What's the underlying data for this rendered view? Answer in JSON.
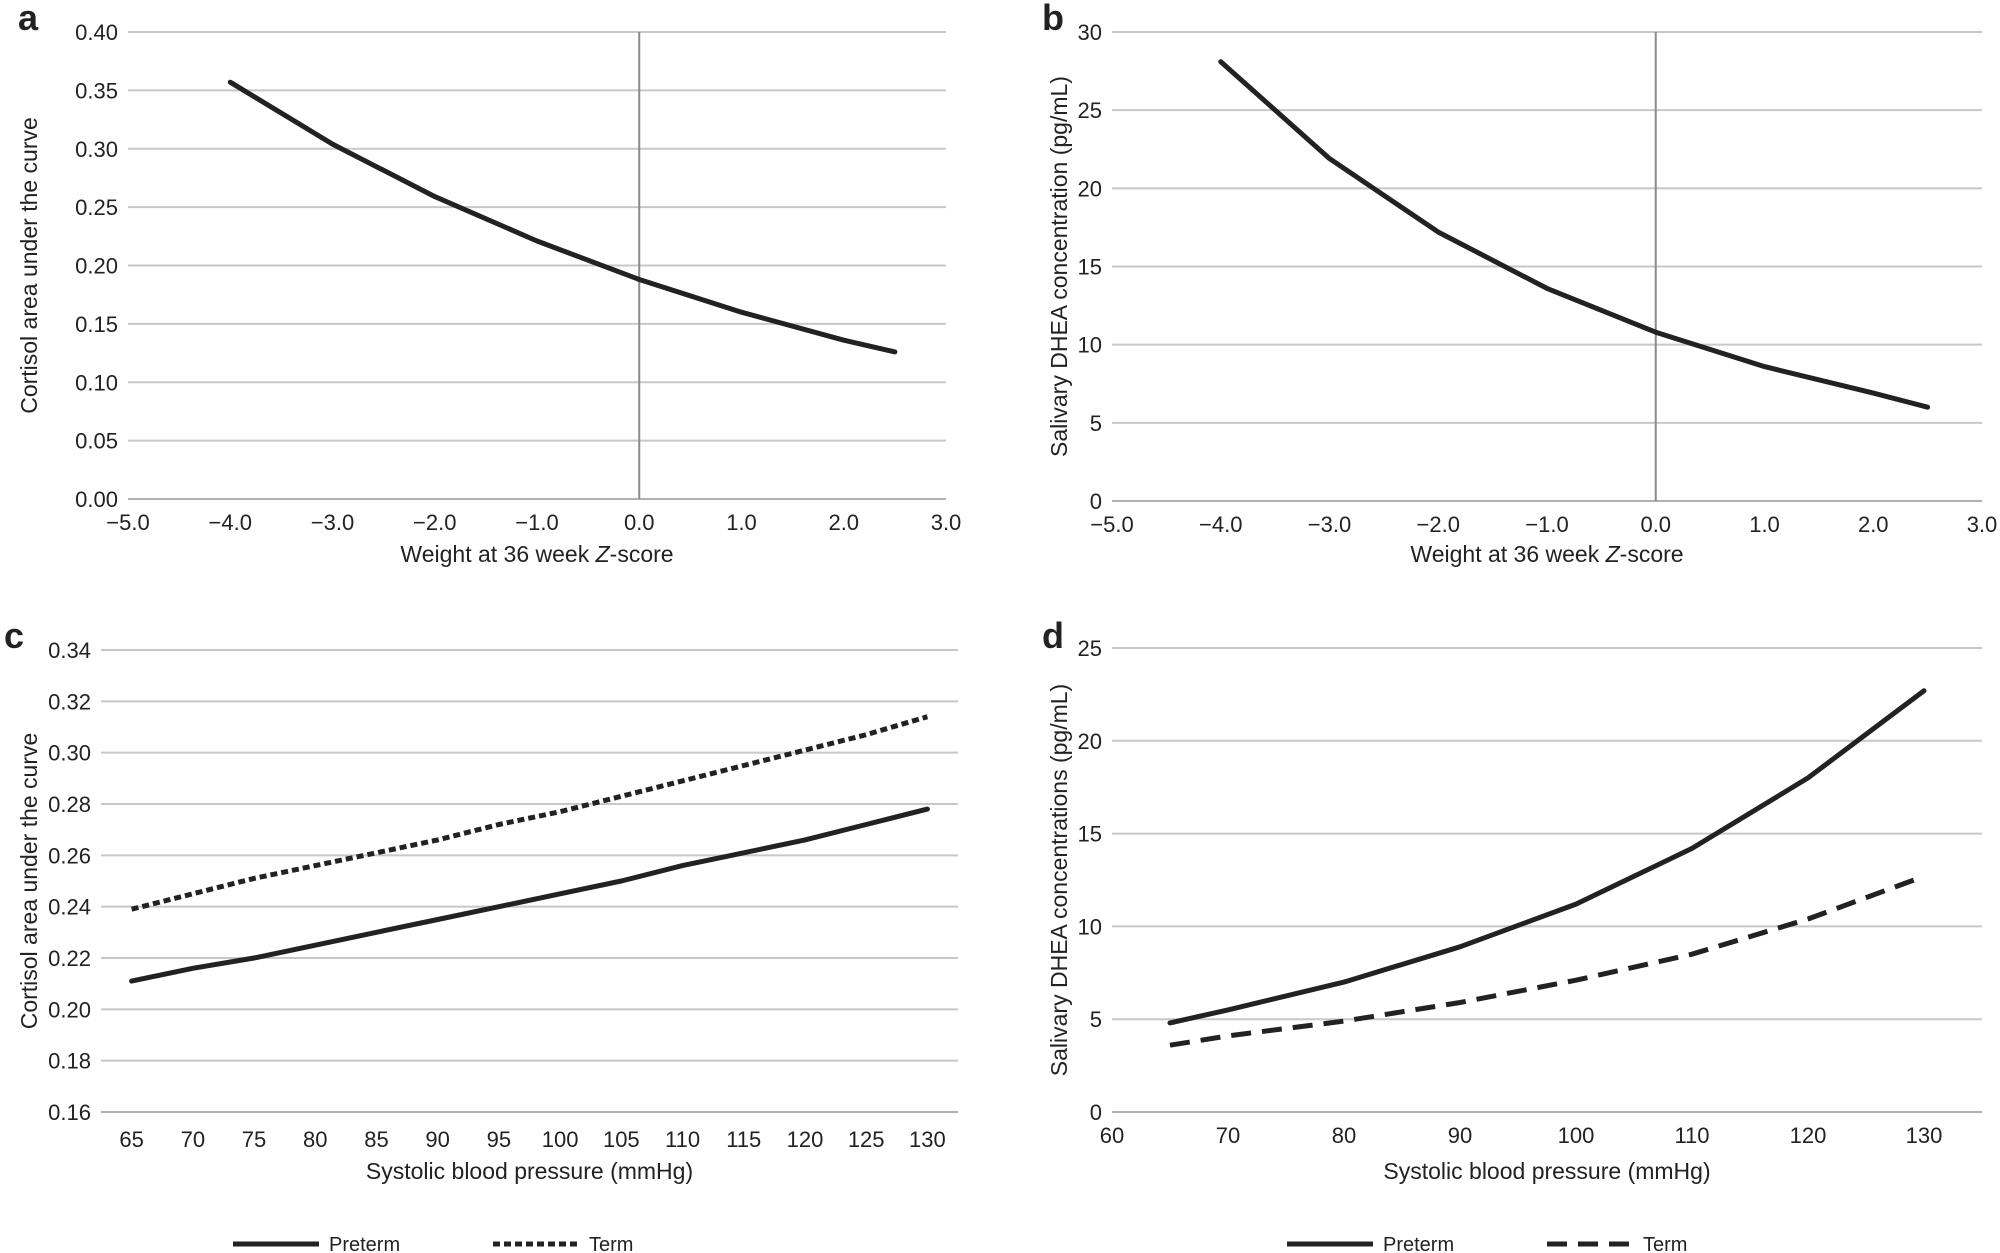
{
  "chart_data": [
    {
      "panel": "a",
      "type": "line",
      "xlabel_pre": "Weight at 36 week ",
      "xlabel_italic": "Z",
      "xlabel_post": "-score",
      "ylabel": "Cortisol area under the curve",
      "xlim": [
        -5.0,
        3.0
      ],
      "ylim": [
        0.0,
        0.4
      ],
      "x_ticks": [
        -5,
        -4,
        -3,
        -2,
        -1,
        0,
        1,
        2,
        3
      ],
      "x_tick_labels": [
        "−5.0",
        "−4.0",
        "−3.0",
        "−2.0",
        "−1.0",
        "0.0",
        "1.0",
        "2.0",
        "3.0"
      ],
      "y_ticks": [
        0,
        0.05,
        0.1,
        0.15,
        0.2,
        0.25,
        0.3,
        0.35,
        0.4
      ],
      "y_tick_labels": [
        "0.00",
        "0.05",
        "0.10",
        "0.15",
        "0.20",
        "0.25",
        "0.30",
        "0.35",
        "0.40"
      ],
      "vertical_line_x": 0,
      "series": [
        {
          "name": "",
          "style": "solid",
          "x": [
            -4.0,
            -3.0,
            -2.0,
            -1.0,
            0.0,
            1.0,
            2.0,
            2.5
          ],
          "y": [
            0.357,
            0.304,
            0.259,
            0.221,
            0.188,
            0.16,
            0.136,
            0.126
          ]
        }
      ]
    },
    {
      "panel": "b",
      "type": "line",
      "xlabel_pre": "Weight at 36 week ",
      "xlabel_italic": "Z",
      "xlabel_post": "-score",
      "ylabel": "Salivary DHEA concentration (pg/mL)",
      "xlim": [
        -5.0,
        3.0
      ],
      "ylim": [
        0,
        30
      ],
      "x_ticks": [
        -5,
        -4,
        -3,
        -2,
        -1,
        0,
        1,
        2,
        3
      ],
      "x_tick_labels": [
        "−5.0",
        "−4.0",
        "−3.0",
        "−2.0",
        "−1.0",
        "0.0",
        "1.0",
        "2.0",
        "3.0"
      ],
      "y_ticks": [
        0,
        5,
        10,
        15,
        20,
        25,
        30
      ],
      "y_tick_labels": [
        "0",
        "5",
        "10",
        "15",
        "20",
        "25",
        "30"
      ],
      "vertical_line_x": 0,
      "series": [
        {
          "name": "",
          "style": "solid",
          "x": [
            -4.0,
            -3.0,
            -2.0,
            -1.0,
            0.0,
            1.0,
            2.0,
            2.5
          ],
          "y": [
            28.1,
            21.9,
            17.2,
            13.6,
            10.8,
            8.6,
            6.9,
            6.0
          ]
        }
      ]
    },
    {
      "panel": "c",
      "type": "line",
      "xlabel": "Systolic blood pressure (mmHg)",
      "ylabel": "Cortisol area under the curve",
      "categories": [
        "65",
        "70",
        "75",
        "80",
        "85",
        "90",
        "95",
        "100",
        "105",
        "110",
        "115",
        "120",
        "125",
        "130"
      ],
      "ylim": [
        0.16,
        0.34
      ],
      "y_ticks": [
        0.16,
        0.18,
        0.2,
        0.22,
        0.24,
        0.26,
        0.28,
        0.3,
        0.32,
        0.34
      ],
      "y_tick_labels": [
        "0.16",
        "0.18",
        "0.20",
        "0.22",
        "0.24",
        "0.26",
        "0.28",
        "0.30",
        "0.32",
        "0.34"
      ],
      "series": [
        {
          "name": "Preterm",
          "style": "solid",
          "values": [
            0.211,
            0.216,
            0.22,
            0.225,
            0.23,
            0.235,
            0.24,
            0.245,
            0.25,
            0.256,
            0.261,
            0.266,
            0.272,
            0.278
          ]
        },
        {
          "name": "Term",
          "style": "dotted",
          "values": [
            0.239,
            0.245,
            0.251,
            0.256,
            0.261,
            0.266,
            0.272,
            0.277,
            0.283,
            0.289,
            0.295,
            0.301,
            0.307,
            0.314
          ]
        }
      ],
      "legend": [
        "Preterm",
        "Term"
      ]
    },
    {
      "panel": "d",
      "type": "line",
      "xlabel": "Systolic blood pressure (mmHg)",
      "ylabel": "Salivary DHEA concentrations (pg/mL)",
      "xlim": [
        60,
        135
      ],
      "ylim": [
        0,
        25
      ],
      "x_ticks": [
        60,
        70,
        80,
        90,
        100,
        110,
        120,
        130
      ],
      "x_tick_labels": [
        "60",
        "70",
        "80",
        "90",
        "100",
        "110",
        "120",
        "130"
      ],
      "y_ticks": [
        0,
        5,
        10,
        15,
        20,
        25
      ],
      "y_tick_labels": [
        "0",
        "5",
        "10",
        "15",
        "20",
        "25"
      ],
      "series": [
        {
          "name": "Preterm",
          "style": "solid",
          "x": [
            65,
            70,
            80,
            90,
            100,
            110,
            120,
            130
          ],
          "y": [
            4.8,
            5.5,
            7.0,
            8.9,
            11.2,
            14.2,
            18.0,
            22.7
          ]
        },
        {
          "name": "Term",
          "style": "dashed",
          "x": [
            65,
            70,
            80,
            90,
            100,
            110,
            120,
            130
          ],
          "y": [
            3.6,
            4.1,
            4.9,
            5.9,
            7.1,
            8.5,
            10.4,
            12.7
          ]
        }
      ],
      "legend": [
        "Preterm",
        "Term"
      ]
    }
  ]
}
